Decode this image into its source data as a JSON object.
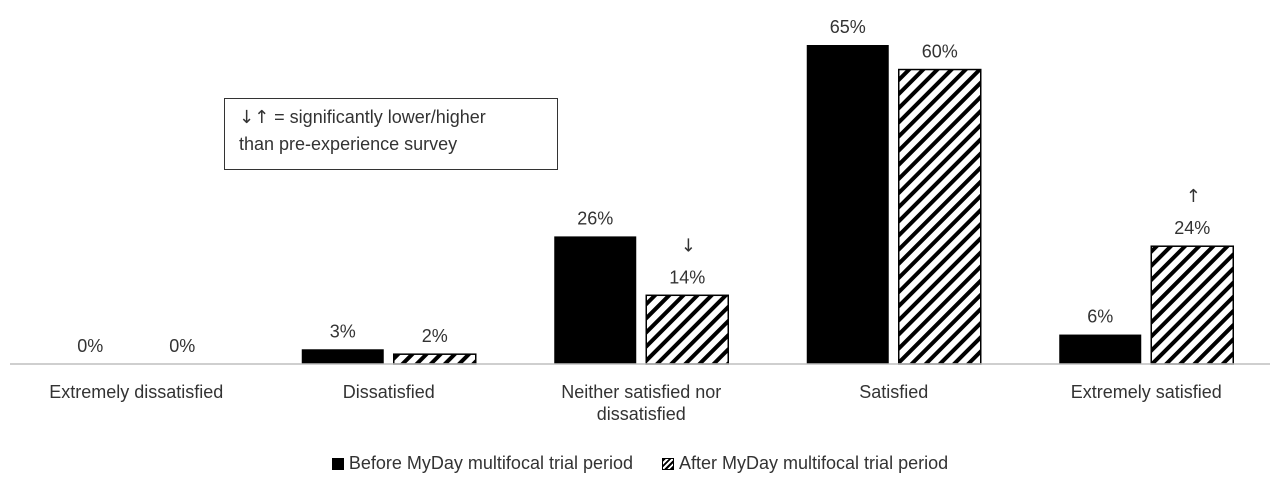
{
  "note": {
    "arrows": "↓↑",
    "line1_rest": " = significantly lower/higher",
    "line2": "than pre-experience survey"
  },
  "colors": {
    "before": "#000000",
    "after_hatch": "#000000",
    "text": "#333333",
    "axis": "#bfbfbf"
  },
  "chart_data": {
    "type": "bar",
    "categories": [
      [
        "Extremely dissatisfied"
      ],
      [
        "Dissatisfied"
      ],
      [
        "Neither satisfied nor",
        "dissatisfied"
      ],
      [
        "Satisfied"
      ],
      [
        "Extremely satisfied"
      ]
    ],
    "series": [
      {
        "name": "Before MyDay multifocal trial period",
        "values": [
          0,
          3,
          26,
          65,
          6
        ],
        "labels": [
          "0%",
          "3%",
          "26%",
          "65%",
          "6%"
        ],
        "fill": "solid"
      },
      {
        "name": "After MyDay multifocal trial period",
        "values": [
          0,
          2,
          14,
          60,
          24
        ],
        "labels": [
          "0%",
          "2%",
          "14%",
          "60%",
          "24%"
        ],
        "fill": "hatch",
        "significance": [
          "",
          "",
          "↓",
          "",
          "↑"
        ]
      }
    ],
    "ylim": [
      0,
      65
    ],
    "grid": false,
    "legend": "bottom"
  }
}
